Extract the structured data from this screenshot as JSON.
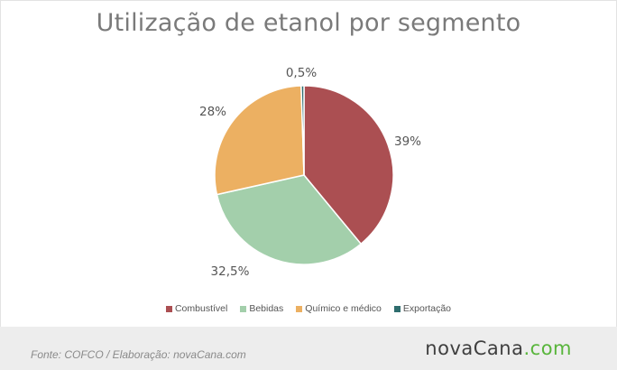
{
  "chart_data": {
    "type": "pie",
    "title": "Utilização de etanol por segmento",
    "categories": [
      "Combustível",
      "Bebidas",
      "Químico e médico",
      "Exportação"
    ],
    "values": [
      39,
      32.5,
      28,
      0.5
    ],
    "data_labels": [
      "39%",
      "32,5%",
      "28%",
      "0,5%"
    ],
    "colors": [
      "#ab4f52",
      "#a3cfab",
      "#ecb062",
      "#2f6d6e"
    ],
    "legend_position": "bottom"
  },
  "footer": {
    "source": "Fonte:  COFCO  / Elaboração:  novaCana.com",
    "logo_part1": "nova",
    "logo_part2": "Cana",
    "logo_part3": ".com"
  }
}
